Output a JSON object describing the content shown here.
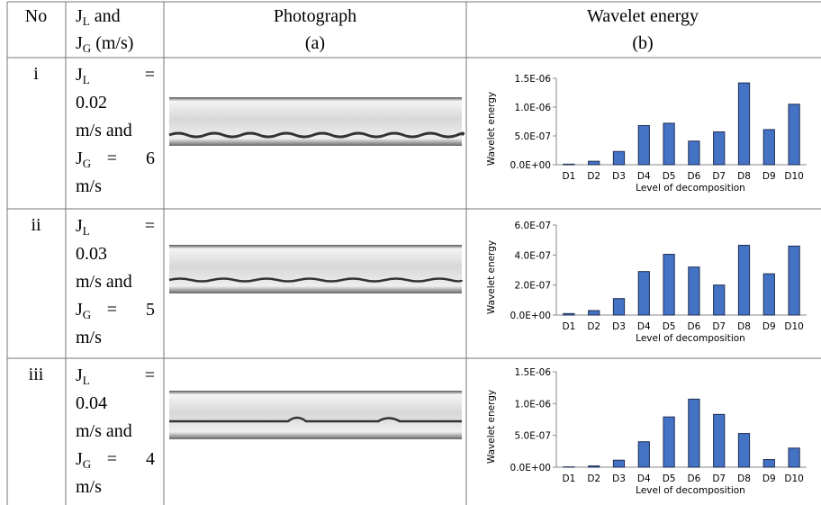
{
  "table": {
    "header": {
      "no": "No",
      "condition": [
        [
          {
            "text": "J"
          },
          {
            "sub": "L"
          },
          {
            "text": " and"
          }
        ],
        [
          {
            "text": "J"
          },
          {
            "sub": "G"
          },
          {
            "text": " (m/s)"
          }
        ]
      ],
      "photograph": [
        "Photograph",
        "(a)"
      ],
      "wavelet": [
        "Wavelet energy",
        "(b)"
      ]
    },
    "rows": [
      {
        "no": "i",
        "condition": [
          [
            {
              "text": "J"
            },
            {
              "sub": "L"
            },
            {
              "text": "="
            }
          ],
          [
            {
              "text": "0.02"
            }
          ],
          [
            {
              "text": "m/s and"
            }
          ],
          [
            {
              "text": "J"
            },
            {
              "sub": "G"
            },
            {
              "text": "="
            },
            {
              "text": "6"
            }
          ],
          [
            {
              "text": "m/s"
            }
          ]
        ]
      },
      {
        "no": "ii",
        "condition": [
          [
            {
              "text": "J"
            },
            {
              "sub": "L"
            },
            {
              "text": "="
            }
          ],
          [
            {
              "text": "0.03"
            }
          ],
          [
            {
              "text": "m/s and"
            }
          ],
          [
            {
              "text": "J"
            },
            {
              "sub": "G"
            },
            {
              "text": "="
            },
            {
              "text": "5"
            }
          ],
          [
            {
              "text": "m/s"
            }
          ]
        ]
      },
      {
        "no": "iii",
        "condition": [
          [
            {
              "text": "J"
            },
            {
              "sub": "L"
            },
            {
              "text": "="
            }
          ],
          [
            {
              "text": "0.04"
            }
          ],
          [
            {
              "text": "m/s and"
            }
          ],
          [
            {
              "text": "J"
            },
            {
              "sub": "G"
            },
            {
              "text": "="
            },
            {
              "text": "4"
            }
          ],
          [
            {
              "text": "m/s"
            }
          ]
        ]
      }
    ]
  },
  "chart_data": [
    {
      "type": "bar",
      "y_label": "Wavelet energy",
      "x_label": "Level of decomposition",
      "color": "#4472c4",
      "categories": [
        "D1",
        "D2",
        "D3",
        "D4",
        "D5",
        "D6",
        "D7",
        "D8",
        "D9",
        "D10"
      ],
      "values": [
        1e-08,
        6e-08,
        2.3e-07,
        6.8e-07,
        7.2e-07,
        4.1e-07,
        5.7e-07,
        1.42e-06,
        6.1e-07,
        1.05e-06
      ],
      "ylim": [
        0,
        1.5e-06
      ],
      "yticks": [
        {
          "value": 0,
          "label": "0.0E+00"
        },
        {
          "value": 5e-07,
          "label": "5.0E-07"
        },
        {
          "value": 1e-06,
          "label": "1.0E-06"
        },
        {
          "value": 1.5e-06,
          "label": "1.5E-06"
        }
      ]
    },
    {
      "type": "bar",
      "y_label": "Wavelet energy",
      "x_label": "Level of decomposition",
      "color": "#4472c4",
      "categories": [
        "D1",
        "D2",
        "D3",
        "D4",
        "D5",
        "D6",
        "D7",
        "D8",
        "D9",
        "D10"
      ],
      "values": [
        1e-08,
        3e-08,
        1.1e-07,
        2.9e-07,
        4.05e-07,
        3.2e-07,
        2e-07,
        4.65e-07,
        2.75e-07,
        4.6e-07
      ],
      "ylim": [
        0,
        6e-07
      ],
      "yticks": [
        {
          "value": 0,
          "label": "0.0E+00"
        },
        {
          "value": 2e-07,
          "label": "2.0E-07"
        },
        {
          "value": 4e-07,
          "label": "4.0E-07"
        },
        {
          "value": 6e-07,
          "label": "6.0E-07"
        }
      ]
    },
    {
      "type": "bar",
      "y_label": "Wavelet energy",
      "x_label": "Level of decomposition",
      "color": "#4472c4",
      "categories": [
        "D1",
        "D2",
        "D3",
        "D4",
        "D5",
        "D6",
        "D7",
        "D8",
        "D9",
        "D10"
      ],
      "values": [
        5e-09,
        2e-08,
        1.1e-07,
        4e-07,
        7.9e-07,
        1.07e-06,
        8.3e-07,
        5.3e-07,
        1.2e-07,
        3e-07
      ],
      "ylim": [
        0,
        1.5e-06
      ],
      "yticks": [
        {
          "value": 0,
          "label": "0.0E+00"
        },
        {
          "value": 5e-07,
          "label": "5.0E-07"
        },
        {
          "value": 1e-06,
          "label": "1.0E-06"
        },
        {
          "value": 1.5e-06,
          "label": "1.5E-06"
        }
      ]
    }
  ]
}
